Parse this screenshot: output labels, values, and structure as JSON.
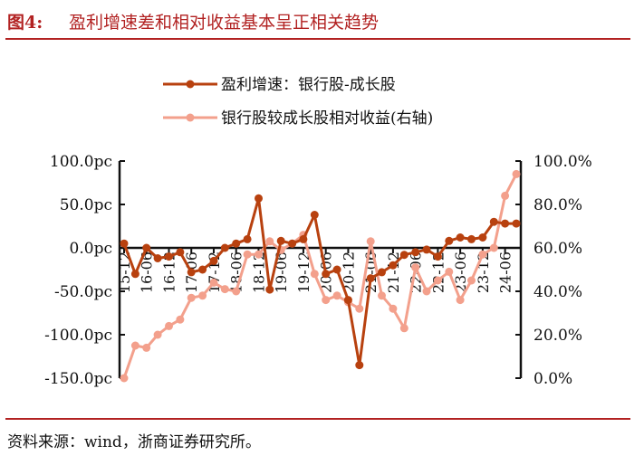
{
  "header": {
    "fig_label": "图4:",
    "title": "盈利增速差和相对收益基本呈正相关趋势"
  },
  "footer": {
    "source": "资料来源：wind，浙商证券研究所。"
  },
  "colors": {
    "accent": "#b22222",
    "series1": "#b8410f",
    "series2": "#f3a08c"
  },
  "chart_data": {
    "type": "line",
    "x_ticks": [
      "15-12",
      "16-06",
      "16-12",
      "17-06",
      "17-12",
      "18-06",
      "18-12",
      "19-06",
      "19-12",
      "20-06",
      "20-12",
      "21-06",
      "21-12",
      "22-06",
      "22-12",
      "23-06",
      "23-12",
      "24-06"
    ],
    "left_axis": {
      "ticks": [
        "100.0pc",
        "50.0pc",
        "0.0pc",
        "-50.0pc",
        "-100.0pc",
        "-150.0pc"
      ],
      "ylim": [
        -150,
        100
      ]
    },
    "right_axis": {
      "ticks": [
        "100.0%",
        "80.0%",
        "60.0%",
        "40.0%",
        "20.0%",
        "0.0%"
      ],
      "ylim": [
        0,
        100
      ]
    },
    "legend_position": "top-center",
    "series": [
      {
        "name": "盈利增速：银行股-成长股",
        "axis": "left",
        "values": [
          5,
          -30,
          0,
          -12,
          -10,
          -5,
          -28,
          -25,
          -15,
          0,
          5,
          10,
          57,
          -48,
          8,
          5,
          10,
          38,
          -30,
          -25,
          -60,
          -135,
          -35,
          -28,
          -20,
          -8,
          -5,
          -2,
          -10,
          8,
          12,
          10,
          12,
          30,
          28,
          28
        ]
      },
      {
        "name": "银行股较成长股相对收益(右轴)",
        "axis": "right",
        "values": [
          0,
          15,
          14,
          20,
          24,
          27,
          37,
          38,
          44,
          41,
          40,
          57,
          57,
          63,
          59,
          62,
          66,
          48,
          36,
          38,
          35,
          32,
          63,
          38,
          32,
          23,
          51,
          40,
          45,
          49,
          36,
          45,
          57,
          60,
          84,
          94
        ]
      }
    ]
  }
}
